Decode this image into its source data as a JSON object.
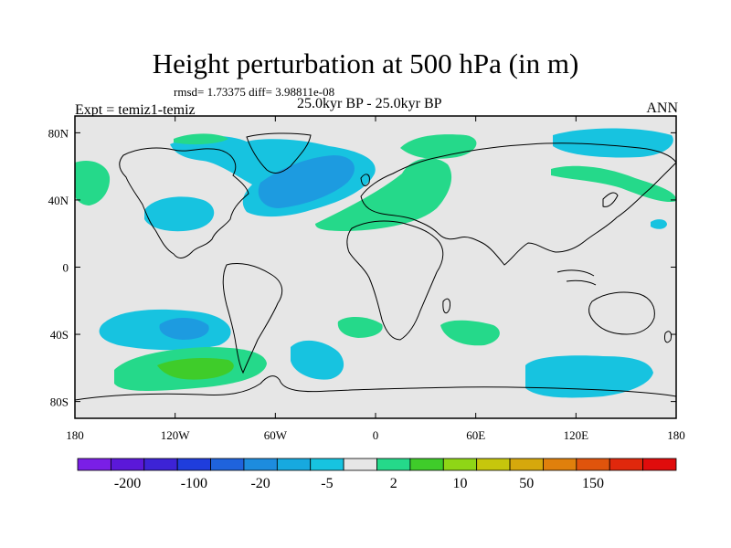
{
  "title": "Height perturbation at 500 hPa (in m)",
  "stats": "rmsd= 1.73375  diff= 3.98811e-08",
  "experiment": "Expt = temiz1-temiz",
  "period": "25.0kyr BP - 25.0kyr BP",
  "season": "ANN",
  "map": {
    "lon_range": [
      -180,
      180
    ],
    "lat_range": [
      -90,
      90
    ],
    "x_ticks": [
      "180",
      "120W",
      "60W",
      "0",
      "60E",
      "120E",
      "180"
    ],
    "y_ticks": [
      "80N",
      "40N",
      "0",
      "40S",
      "80S"
    ],
    "background_color": "#e6e6e6",
    "coastline_color": "#000000"
  },
  "anomalies": [
    {
      "lon": -60,
      "lat": 65,
      "sign": "negative",
      "level": "-5 to -2",
      "color": "#17c3e0"
    },
    {
      "lon": -40,
      "lat": 55,
      "sign": "negative",
      "level": "-20 to -5",
      "color": "#1d9be0"
    },
    {
      "lon": -150,
      "lat": 55,
      "sign": "positive",
      "level": "2 to 10",
      "color": "#25d98a"
    },
    {
      "lon": 20,
      "lat": 45,
      "sign": "positive",
      "level": "2 to 10",
      "color": "#25d98a"
    },
    {
      "lon": 120,
      "lat": 75,
      "sign": "negative",
      "level": "-5 to -2",
      "color": "#17c3e0"
    },
    {
      "lon": -125,
      "lat": -35,
      "sign": "negative",
      "level": "-20 to -5",
      "color": "#1d9be0"
    },
    {
      "lon": -115,
      "lat": -60,
      "sign": "positive",
      "level": "10 to 20",
      "color": "#3fcc2a"
    },
    {
      "lon": 125,
      "lat": -65,
      "sign": "negative",
      "level": "-5 to -2",
      "color": "#17c3e0"
    }
  ],
  "colorbar": {
    "colors": [
      "#7a1fe6",
      "#5b18d9",
      "#3d23d6",
      "#1f3ddc",
      "#1f63dd",
      "#1d8cde",
      "#17a9df",
      "#17c3e0",
      "#e6e6e6",
      "#25d98a",
      "#3fcc2a",
      "#8fd616",
      "#c6c60c",
      "#d6a80c",
      "#e0800c",
      "#e0540c",
      "#e0280c",
      "#e00c0c"
    ],
    "labels": [
      "-200",
      "-100",
      "-20",
      "-5",
      "2",
      "10",
      "50",
      "150"
    ]
  }
}
